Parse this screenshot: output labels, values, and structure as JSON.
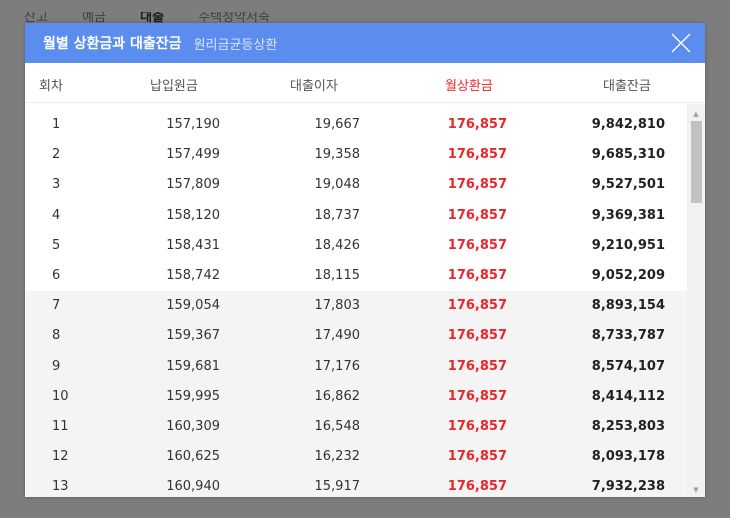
{
  "background": {
    "tabs": [
      "잔고",
      "예금",
      "대출",
      "주택청약저축"
    ],
    "active_tab_index": 2
  },
  "modal": {
    "title": "월별 상환금과 대출잔금",
    "subtitle": "원리금균등상환",
    "close_icon": "close-icon",
    "accent_color": "#5b8dee",
    "highlight_color": "#e8262c"
  },
  "table": {
    "headers": {
      "no": "회차",
      "principal": "납입원금",
      "interest": "대출이자",
      "payment": "월상환금",
      "balance": "대출잔금"
    },
    "rows": [
      {
        "no": "1",
        "principal": "157,190",
        "interest": "19,667",
        "payment": "176,857",
        "balance": "9,842,810"
      },
      {
        "no": "2",
        "principal": "157,499",
        "interest": "19,358",
        "payment": "176,857",
        "balance": "9,685,310"
      },
      {
        "no": "3",
        "principal": "157,809",
        "interest": "19,048",
        "payment": "176,857",
        "balance": "9,527,501"
      },
      {
        "no": "4",
        "principal": "158,120",
        "interest": "18,737",
        "payment": "176,857",
        "balance": "9,369,381"
      },
      {
        "no": "5",
        "principal": "158,431",
        "interest": "18,426",
        "payment": "176,857",
        "balance": "9,210,951"
      },
      {
        "no": "6",
        "principal": "158,742",
        "interest": "18,115",
        "payment": "176,857",
        "balance": "9,052,209"
      },
      {
        "no": "7",
        "principal": "159,054",
        "interest": "17,803",
        "payment": "176,857",
        "balance": "8,893,154"
      },
      {
        "no": "8",
        "principal": "159,367",
        "interest": "17,490",
        "payment": "176,857",
        "balance": "8,733,787"
      },
      {
        "no": "9",
        "principal": "159,681",
        "interest": "17,176",
        "payment": "176,857",
        "balance": "8,574,107"
      },
      {
        "no": "10",
        "principal": "159,995",
        "interest": "16,862",
        "payment": "176,857",
        "balance": "8,414,112"
      },
      {
        "no": "11",
        "principal": "160,309",
        "interest": "16,548",
        "payment": "176,857",
        "balance": "8,253,803"
      },
      {
        "no": "12",
        "principal": "160,625",
        "interest": "16,232",
        "payment": "176,857",
        "balance": "8,093,178"
      },
      {
        "no": "13",
        "principal": "160,940",
        "interest": "15,917",
        "payment": "176,857",
        "balance": "7,932,238"
      }
    ],
    "shaded_from_row": 7
  }
}
